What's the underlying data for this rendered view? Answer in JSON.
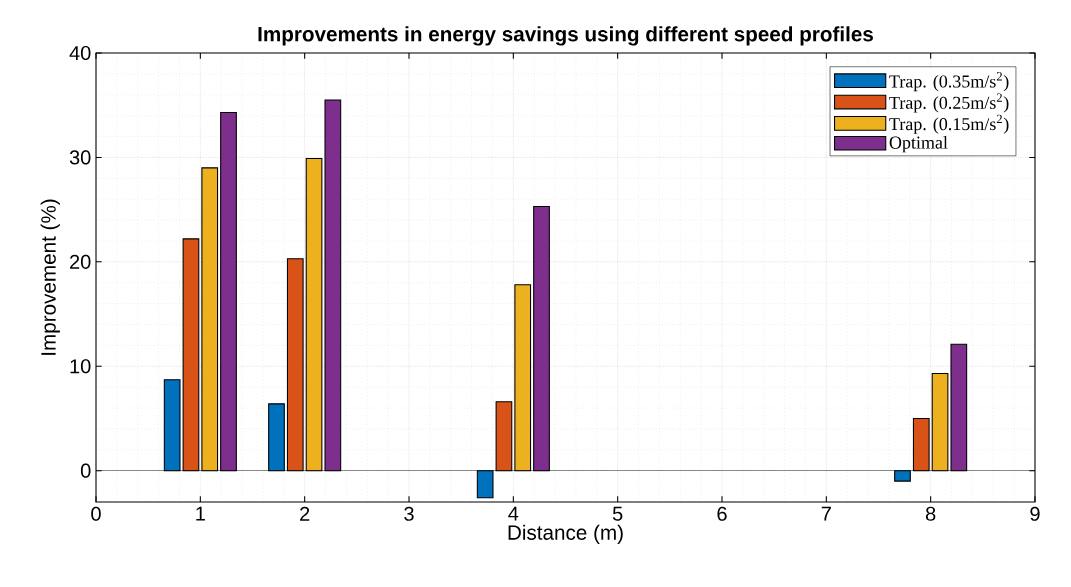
{
  "chart_data": {
    "type": "bar",
    "title": "Improvements in energy savings using different speed profiles",
    "xlabel": "Distance (m)",
    "ylabel": "Improvement (%)",
    "x": [
      1,
      2,
      4,
      8
    ],
    "series": [
      {
        "name": "Trap. (0.35m/s$^{2}$)",
        "color": "#0072bd",
        "values": [
          8.7,
          6.4,
          -2.6,
          -1.0
        ]
      },
      {
        "name": "Trap. (0.25m/s$^{2}$)",
        "color": "#d95319",
        "values": [
          22.2,
          20.3,
          6.6,
          5.0
        ]
      },
      {
        "name": "Trap. (0.15m/s$^{2}$)",
        "color": "#edb120",
        "values": [
          29.0,
          29.9,
          17.8,
          9.3
        ]
      },
      {
        "name": "Optimal",
        "color": "#7e2f8e",
        "values": [
          34.3,
          35.5,
          25.3,
          12.1
        ]
      }
    ],
    "xlim": [
      0,
      9
    ],
    "xticks": [
      0,
      1,
      2,
      3,
      4,
      5,
      6,
      7,
      8,
      9
    ],
    "ylim": [
      -3,
      40
    ],
    "yticks": [
      0,
      10,
      20,
      30,
      40
    ],
    "ref_lines": [
      {
        "axis": "y",
        "value": 0
      }
    ],
    "grid": true,
    "legend": "top right"
  }
}
